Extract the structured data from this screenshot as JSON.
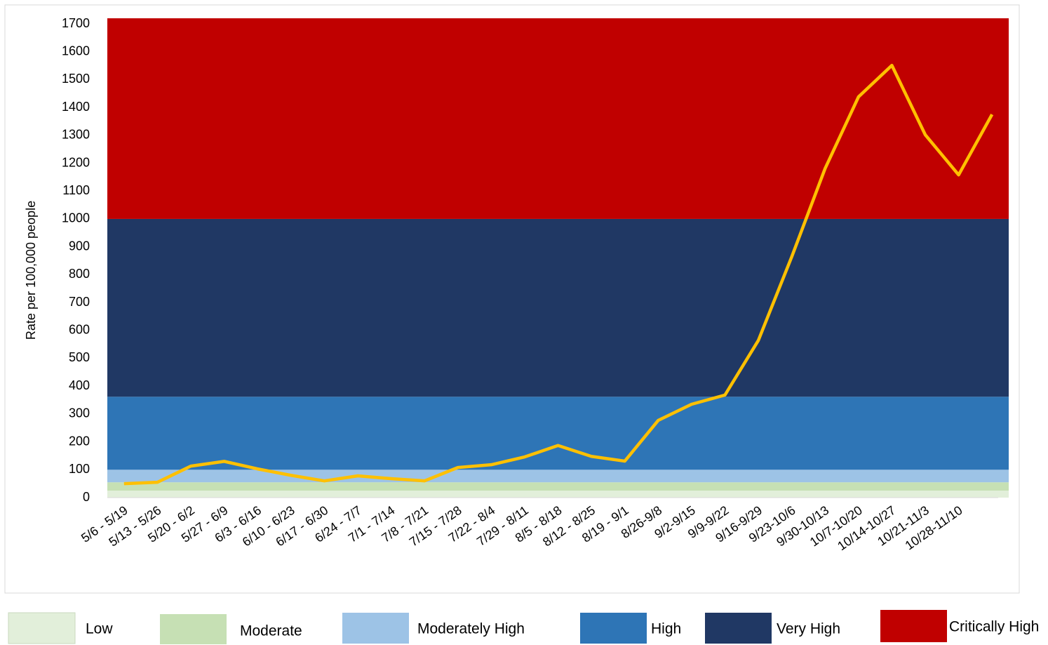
{
  "chart_data": {
    "type": "line",
    "y_label": "Rate per 100,000 people",
    "categories": [
      "5/6 - 5/19",
      "5/13 - 5/26",
      "5/20 - 6/2",
      "5/27 - 6/9",
      "6/3 - 6/16",
      "6/10 - 6/23",
      "6/17 - 6/30",
      "6/24 - 7/7",
      "7/1 - 7/14",
      "7/8 - 7/21",
      "7/15 - 7/28",
      "7/22 - 8/4",
      "7/29 - 8/11",
      "8/5 - 8/18",
      "8/12 - 8/25",
      "8/19 - 9/1",
      "8/26-9/8",
      "9/2-9/15",
      "9/9-9/22",
      "9/16-9/29",
      "9/23-10/6",
      "9/30-10/13",
      "10/7-10/20",
      "10/14-10/27",
      "10/21-11/3",
      "10/28-11/10",
      null
    ],
    "series": [
      {
        "color": "#ffc000",
        "values": [
          50,
          55,
          113,
          130,
          103,
          80,
          60,
          78,
          68,
          60,
          108,
          118,
          146,
          187,
          148,
          131,
          277,
          335,
          368,
          564,
          864,
          1181,
          1438,
          1551,
          1302,
          1158,
          1375
        ]
      }
    ],
    "bands": [
      {
        "name": "Low",
        "color": "#e2efda",
        "from": 0,
        "to": 25
      },
      {
        "name": "Moderate",
        "color": "#c6e0b4",
        "from": 25,
        "to": 55
      },
      {
        "name": "Moderately High",
        "color": "#9dc3e6",
        "from": 55,
        "to": 100
      },
      {
        "name": "High",
        "color": "#2e75b6",
        "from": 100,
        "to": 362
      },
      {
        "name": "Very High",
        "color": "#203864",
        "from": 362,
        "to": 1000
      },
      {
        "name": "Critically High",
        "color": "#c00000",
        "from": 1000,
        "to": 1720
      }
    ],
    "ylim": [
      0,
      1720
    ],
    "yticks": [
      0,
      100,
      200,
      300,
      400,
      500,
      600,
      700,
      800,
      900,
      1000,
      1100,
      1200,
      1300,
      1400,
      1500,
      1600,
      1700
    ]
  }
}
